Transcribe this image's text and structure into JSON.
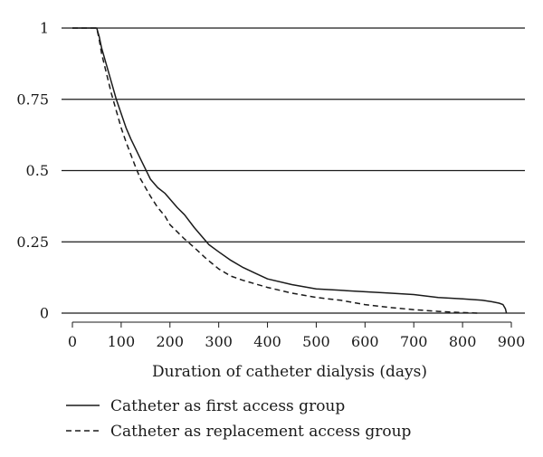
{
  "chart_data": {
    "type": "line",
    "xlabel": "Duration of catheter dialysis (days)",
    "ylabel": "",
    "xlim": [
      0,
      900
    ],
    "ylim": [
      0,
      1
    ],
    "x_ticks": [
      "0",
      "100",
      "200",
      "300",
      "400",
      "500",
      "600",
      "700",
      "800",
      "900"
    ],
    "y_ticks": [
      "0",
      "0.25",
      "0.5",
      "0.75",
      "1"
    ],
    "grid": "horizontal",
    "legend_position": "bottom",
    "series": [
      {
        "name": "Catheter as first access group",
        "style": "solid",
        "color": "#1a1a1a",
        "x": [
          0,
          50,
          55,
          60,
          70,
          80,
          90,
          100,
          110,
          120,
          130,
          140,
          150,
          160,
          175,
          190,
          200,
          215,
          230,
          250,
          270,
          280,
          300,
          325,
          350,
          375,
          400,
          450,
          500,
          550,
          600,
          650,
          700,
          750,
          800,
          840,
          860,
          875,
          883,
          888,
          890
        ],
        "y": [
          1,
          1,
          0.97,
          0.93,
          0.87,
          0.81,
          0.75,
          0.7,
          0.65,
          0.61,
          0.575,
          0.54,
          0.505,
          0.47,
          0.44,
          0.42,
          0.4,
          0.37,
          0.345,
          0.3,
          0.26,
          0.24,
          0.215,
          0.185,
          0.16,
          0.14,
          0.12,
          0.1,
          0.085,
          0.08,
          0.075,
          0.07,
          0.065,
          0.055,
          0.05,
          0.045,
          0.04,
          0.035,
          0.03,
          0.015,
          0
        ]
      },
      {
        "name": "Catheter as replacement access group",
        "style": "dashed",
        "color": "#1a1a1a",
        "x": [
          0,
          50,
          55,
          60,
          70,
          80,
          90,
          100,
          110,
          120,
          130,
          140,
          150,
          160,
          175,
          190,
          200,
          215,
          230,
          250,
          275,
          300,
          325,
          350,
          400,
          450,
          500,
          550,
          600,
          650,
          700,
          750,
          800,
          830
        ],
        "y": [
          1,
          1,
          0.96,
          0.91,
          0.84,
          0.77,
          0.71,
          0.65,
          0.6,
          0.555,
          0.51,
          0.47,
          0.44,
          0.41,
          0.37,
          0.34,
          0.31,
          0.285,
          0.26,
          0.23,
          0.19,
          0.155,
          0.13,
          0.115,
          0.09,
          0.07,
          0.055,
          0.045,
          0.03,
          0.02,
          0.012,
          0.006,
          0.002,
          0
        ]
      }
    ]
  }
}
